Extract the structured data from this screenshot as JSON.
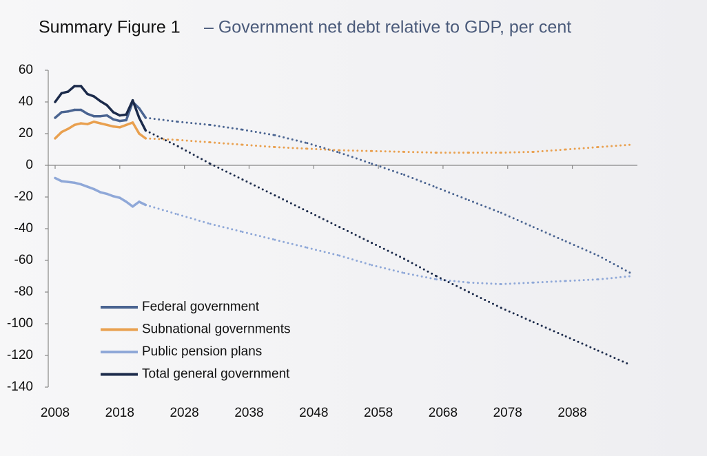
{
  "chart_data": {
    "type": "line",
    "title": "Summary Figure 1",
    "subtitle": "– Government net debt relative to GDP, per cent",
    "x": [
      2008,
      2009,
      2010,
      2011,
      2012,
      2013,
      2014,
      2015,
      2016,
      2017,
      2018,
      2019,
      2020,
      2021,
      2022,
      2027,
      2032,
      2037,
      2042,
      2047,
      2052,
      2057,
      2062,
      2067,
      2072,
      2077,
      2082,
      2087,
      2092,
      2097
    ],
    "projection_from": 2022,
    "series": [
      {
        "name": "Federal government",
        "color": "#4a6491",
        "values": [
          30,
          33.5,
          34,
          35,
          35,
          32.5,
          31,
          31,
          31.5,
          29,
          28,
          28.5,
          40,
          36,
          30,
          27.5,
          25.5,
          22.5,
          19,
          14,
          8,
          1,
          -6,
          -14,
          -22,
          -30,
          -39,
          -48,
          -57,
          -68
        ]
      },
      {
        "name": "Subnational governments",
        "color": "#e9a04f",
        "values": [
          17,
          21,
          23,
          25.5,
          26.5,
          26,
          27.5,
          26.5,
          25.5,
          24.5,
          24,
          25.5,
          27,
          20,
          17,
          16,
          14.5,
          13,
          11.5,
          10.5,
          9.5,
          9,
          8.5,
          8,
          8,
          8,
          8.5,
          10,
          11.5,
          13
        ]
      },
      {
        "name": "Public pension plans",
        "color": "#8fa8d8",
        "values": [
          -8,
          -10,
          -10.5,
          -11,
          -12,
          -13.5,
          -15,
          -17,
          -18,
          -19.5,
          -20.5,
          -23,
          -26,
          -23,
          -25,
          -31,
          -37,
          -42,
          -47,
          -52,
          -57,
          -63,
          -68,
          -72,
          -74,
          -75,
          -74,
          -73,
          -72,
          -70
        ]
      },
      {
        "name": "Total general government",
        "color": "#1b2a4a",
        "values": [
          40,
          45.5,
          46.5,
          50,
          50,
          45,
          43.5,
          40.5,
          38,
          33.5,
          31.5,
          32,
          41,
          30,
          22,
          12,
          1,
          -9,
          -19,
          -29,
          -39,
          -49,
          -59,
          -70,
          -80,
          -90,
          -99,
          -108,
          -117,
          -126
        ]
      }
    ],
    "xlim": [
      2008,
      2097
    ],
    "xticks": [
      2008,
      2018,
      2028,
      2038,
      2048,
      2058,
      2068,
      2078,
      2088
    ],
    "ylim": [
      -140,
      60
    ],
    "yticks": [
      60,
      40,
      20,
      0,
      -20,
      -40,
      -60,
      -80,
      -100,
      -120,
      -140
    ],
    "legend": "lower-left"
  }
}
